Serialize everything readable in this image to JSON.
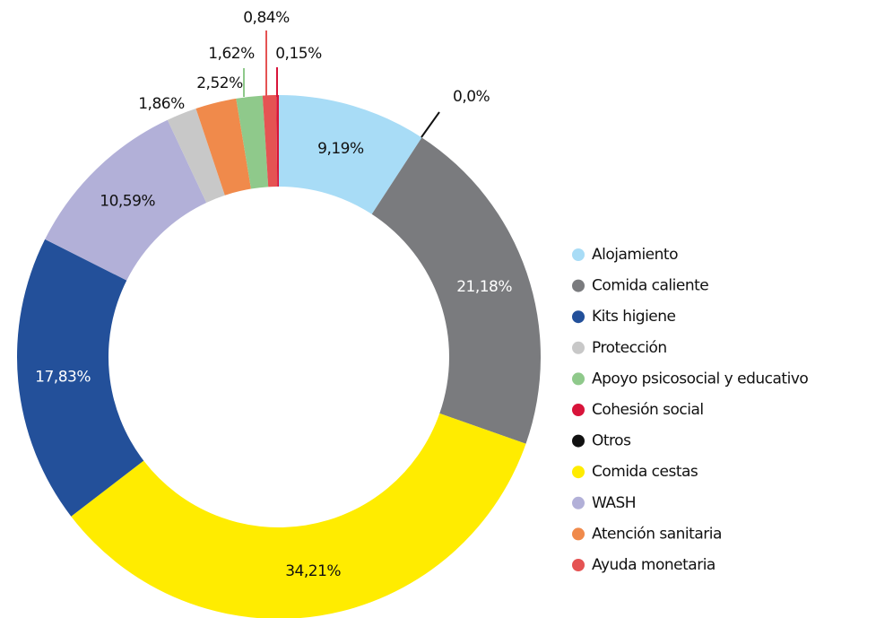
{
  "chart_data": {
    "type": "donut",
    "categories": [
      "Alojamiento",
      "Comida caliente",
      "Kits higiene",
      "Protección",
      "Apoyo psicosocial y educativo",
      "Cohesión social",
      "Otros",
      "Comida cestas",
      "WASH",
      "Atención sanitaria",
      "Ayuda monetaria"
    ],
    "values": [
      9.19,
      21.18,
      17.83,
      1.86,
      1.62,
      0.15,
      0.0,
      34.21,
      10.59,
      2.52,
      0.84
    ],
    "value_labels": [
      "9,19%",
      "21,18%",
      "17,83%",
      "1,86%",
      "1,62%",
      "0,15%",
      "0,0%",
      "34,21%",
      "10,59%",
      "2,52%",
      "0,84%"
    ],
    "colors": [
      "#a8dcf6",
      "#7a7b7e",
      "#23509a",
      "#c8c8c8",
      "#8fc98b",
      "#d8143a",
      "#111111",
      "#ffec00",
      "#b2b0d8",
      "#f08a4b",
      "#e55353"
    ],
    "legend": "right"
  }
}
